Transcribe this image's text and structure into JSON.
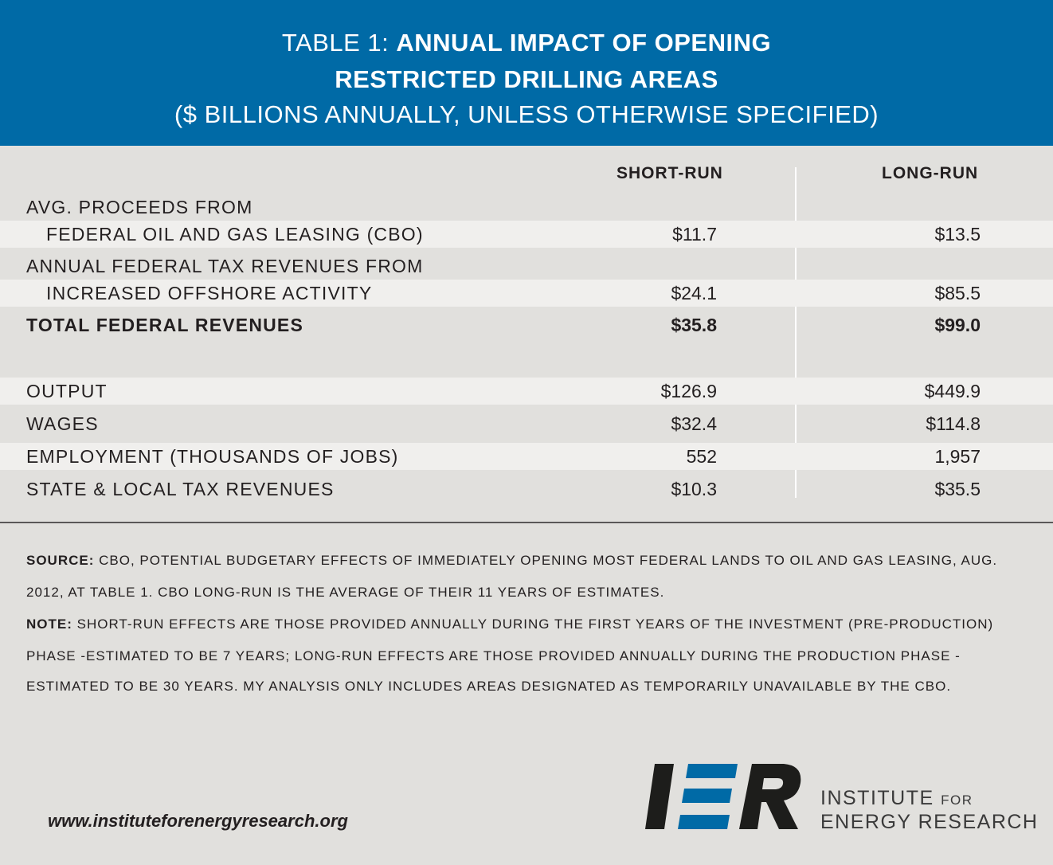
{
  "header": {
    "title_prefix": "TABLE 1:",
    "title_bold_1": "ANNUAL IMPACT OF OPENING",
    "title_bold_2": "RESTRICTED DRILLING AREAS",
    "subtitle": "($ BILLIONS ANNUALLY, UNLESS OTHERWISE SPECIFIED)",
    "bg_color": "#006aa6"
  },
  "table": {
    "columns": [
      "SHORT-RUN",
      "LONG-RUN"
    ],
    "rows": [
      {
        "label_line1": "AVG. PROCEEDS FROM",
        "label_line2": "FEDERAL OIL AND GAS LEASING (CBO)",
        "short_run": "$11.7",
        "long_run": "$13.5"
      },
      {
        "label_line1": "ANNUAL FEDERAL TAX REVENUES FROM",
        "label_line2": "INCREASED OFFSHORE ACTIVITY",
        "short_run": "$24.1",
        "long_run": "$85.5"
      },
      {
        "label": "TOTAL FEDERAL REVENUES",
        "short_run": "$35.8",
        "long_run": "$99.0"
      },
      {
        "label": "OUTPUT",
        "short_run": "$126.9",
        "long_run": "$449.9"
      },
      {
        "label": "WAGES",
        "short_run": "$32.4",
        "long_run": "$114.8"
      },
      {
        "label": "EMPLOYMENT (THOUSANDS OF JOBS)",
        "short_run": "552",
        "long_run": "1,957"
      },
      {
        "label": "STATE & LOCAL TAX REVENUES",
        "short_run": "$10.3",
        "long_run": "$35.5"
      }
    ]
  },
  "notes": {
    "source_label": "SOURCE:",
    "source_line1": "CBO, POTENTIAL BUDGETARY EFFECTS OF IMMEDIATELY OPENING MOST FEDERAL LANDS TO OIL AND GAS LEASING, AUG.",
    "source_line2": "2012, AT TABLE 1. CBO LONG-RUN IS THE AVERAGE OF THEIR 11 YEARS OF ESTIMATES.",
    "note_label": "NOTE:",
    "note_line1": "SHORT-RUN EFFECTS ARE THOSE PROVIDED ANNUALLY DURING THE FIRST YEARS OF THE INVESTMENT (PRE-PRODUCTION)",
    "note_line2": "PHASE -ESTIMATED TO BE 7 YEARS; LONG-RUN EFFECTS ARE THOSE PROVIDED ANNUALLY DURING THE PRODUCTION PHASE -",
    "note_line3": "ESTIMATED TO BE 30 YEARS. MY ANALYSIS ONLY INCLUDES AREAS DESIGNATED AS TEMPORARILY UNAVAILABLE BY THE CBO."
  },
  "footer": {
    "website": "www.instituteforenergyresearch.org",
    "logo_mark": "IER",
    "logo_line1": "INSTITUTE",
    "logo_line1_small": "FOR",
    "logo_line2": "ENERGY RESEARCH",
    "logo_accent_color": "#006aa6"
  }
}
